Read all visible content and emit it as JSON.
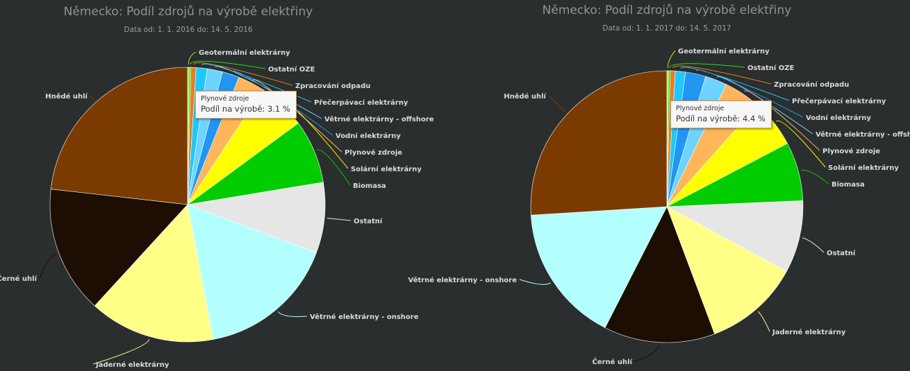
{
  "chart_data": [
    {
      "type": "pie",
      "title": "Německo: Podíl zdrojů na výrobě elektřiny",
      "subtitle": "Data od: 1. 1. 2016 do: 14. 5. 2016",
      "tooltip": {
        "name": "Plynové zdroje",
        "label": "Podíl na výrobě:",
        "value": "3.1 %"
      },
      "slices": [
        {
          "name": "Geotermální elektrárny",
          "value": 0.2,
          "color": "#b5e61d"
        },
        {
          "name": "Ostatní OZE",
          "value": 0.2,
          "color": "#22dd22"
        },
        {
          "name": "Zpracování odpadu",
          "value": 0.6,
          "color": "#e67e22"
        },
        {
          "name": "Přečerpávací elektrárny",
          "value": 1.3,
          "color": "#1ec8ff"
        },
        {
          "name": "Větrné elektrárny - offshore",
          "value": 1.8,
          "color": "#6dd4ff"
        },
        {
          "name": "Vodní elektrárny",
          "value": 2.0,
          "color": "#2196f3"
        },
        {
          "name": "Plynové zdroje",
          "value": 3.1,
          "color": "#ffb55a"
        },
        {
          "name": "Solární elektrárny",
          "value": 5.7,
          "color": "#ffff00"
        },
        {
          "name": "Biomasa",
          "value": 7.5,
          "color": "#00cc00"
        },
        {
          "name": "Ostatní",
          "value": 8.3,
          "color": "#e6e6e6"
        },
        {
          "name": "Větrné elektrárny - onshore",
          "value": 16.3,
          "color": "#b3ffff"
        },
        {
          "name": "Jaderné elektrárny",
          "value": 14.8,
          "color": "#ffff88"
        },
        {
          "name": "Černé uhlí",
          "value": 15.0,
          "color": "#1c0e02"
        },
        {
          "name": "Hnědé uhlí",
          "value": 23.2,
          "color": "#7b3b00"
        }
      ]
    },
    {
      "type": "pie",
      "title": "Německo: Podíl zdrojů na výrobě elektřiny",
      "subtitle": "Data od: 1. 1. 2017 do: 14. 5. 2017",
      "tooltip": {
        "name": "Plynové zdroje",
        "label": "Podíl na výrobě:",
        "value": "4.4 %"
      },
      "slices": [
        {
          "name": "Geotermální elektrárny",
          "value": 0.2,
          "color": "#b5e61d"
        },
        {
          "name": "Ostatní OZE",
          "value": 0.2,
          "color": "#22dd22"
        },
        {
          "name": "Zpracování odpadu",
          "value": 0.6,
          "color": "#e67e22"
        },
        {
          "name": "Přečerpávací elektrárny",
          "value": 1.2,
          "color": "#1ec8ff"
        },
        {
          "name": "Vodní elektrárny",
          "value": 2.4,
          "color": "#2196f3"
        },
        {
          "name": "Větrné elektrárny - offshore",
          "value": 2.6,
          "color": "#6dd4ff"
        },
        {
          "name": "Plynové zdroje",
          "value": 4.4,
          "color": "#ffb55a"
        },
        {
          "name": "Solární elektrárny",
          "value": 5.7,
          "color": "#ffff00"
        },
        {
          "name": "Biomasa",
          "value": 7.0,
          "color": "#00cc00"
        },
        {
          "name": "Ostatní",
          "value": 8.6,
          "color": "#e6e6e6"
        },
        {
          "name": "Jaderné elektrárny",
          "value": 11.4,
          "color": "#ffff88"
        },
        {
          "name": "Černé uhlí",
          "value": 13.2,
          "color": "#1c0e02"
        },
        {
          "name": "Větrné elektrárny - onshore",
          "value": 16.5,
          "color": "#b3ffff"
        },
        {
          "name": "Hnědé uhlí",
          "value": 26.0,
          "color": "#7b3b00"
        }
      ]
    }
  ]
}
